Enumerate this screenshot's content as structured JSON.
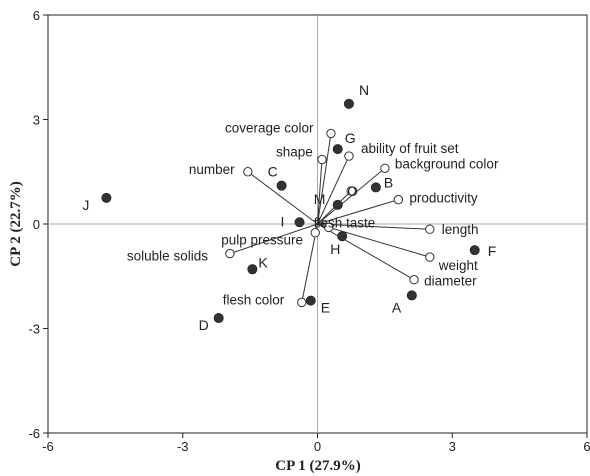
{
  "chart_data": {
    "type": "biplot",
    "xlabel": "CP 1 (27.9%)",
    "ylabel": "CP 2 (22.7%)",
    "xlim": [
      -6,
      6
    ],
    "ylim": [
      -6,
      6
    ],
    "xticks": [
      -6,
      -3,
      0,
      3,
      6
    ],
    "yticks": [
      -6,
      -3,
      0,
      3,
      6
    ],
    "xtick_labels": [
      "-6",
      "-3",
      "0",
      "3",
      "6"
    ],
    "ytick_labels": [
      "-6",
      "-3",
      "0",
      "3",
      "6"
    ],
    "grid": false,
    "scores": [
      {
        "label": "N",
        "x": 0.7,
        "y": 3.45
      },
      {
        "label": "G",
        "x": 0.45,
        "y": 2.15
      },
      {
        "label": "C",
        "x": -0.8,
        "y": 1.1
      },
      {
        "label": "B",
        "x": 1.3,
        "y": 1.05
      },
      {
        "label": "J",
        "x": -4.7,
        "y": 0.75
      },
      {
        "label": "M",
        "x": 0.45,
        "y": 0.55
      },
      {
        "label": "I",
        "x": -0.4,
        "y": 0.05
      },
      {
        "label": "H",
        "x": 0.55,
        "y": -0.35
      },
      {
        "label": "F",
        "x": 3.5,
        "y": -0.75
      },
      {
        "label": "K",
        "x": -1.45,
        "y": -1.3
      },
      {
        "label": "A",
        "x": 2.1,
        "y": -2.05
      },
      {
        "label": "E",
        "x": -0.15,
        "y": -2.2
      },
      {
        "label": "D",
        "x": -2.2,
        "y": -2.7
      }
    ],
    "loadings": [
      {
        "label": "coverage color",
        "x": 0.3,
        "y": 2.6
      },
      {
        "label": "shape",
        "x": 0.1,
        "y": 1.85
      },
      {
        "label": "ability of fruit set",
        "x": 0.7,
        "y": 1.95
      },
      {
        "label": "number",
        "x": -1.55,
        "y": 1.5
      },
      {
        "label": "background color",
        "x": 1.5,
        "y": 1.6
      },
      {
        "label": "O",
        "x": 0.75,
        "y": 0.95
      },
      {
        "label": "productivity",
        "x": 1.8,
        "y": 0.7
      },
      {
        "label": "flesh taste",
        "x": 0.25,
        "y": -0.1
      },
      {
        "label": "length",
        "x": 2.5,
        "y": -0.15
      },
      {
        "label": "pulp pressure",
        "x": -0.05,
        "y": -0.25
      },
      {
        "label": "soluble solids",
        "x": -1.95,
        "y": -0.85
      },
      {
        "label": "weight",
        "x": 2.5,
        "y": -0.95
      },
      {
        "label": "diameter",
        "x": 2.15,
        "y": -1.6
      },
      {
        "label": "flesh color",
        "x": -0.35,
        "y": -2.25
      }
    ]
  }
}
